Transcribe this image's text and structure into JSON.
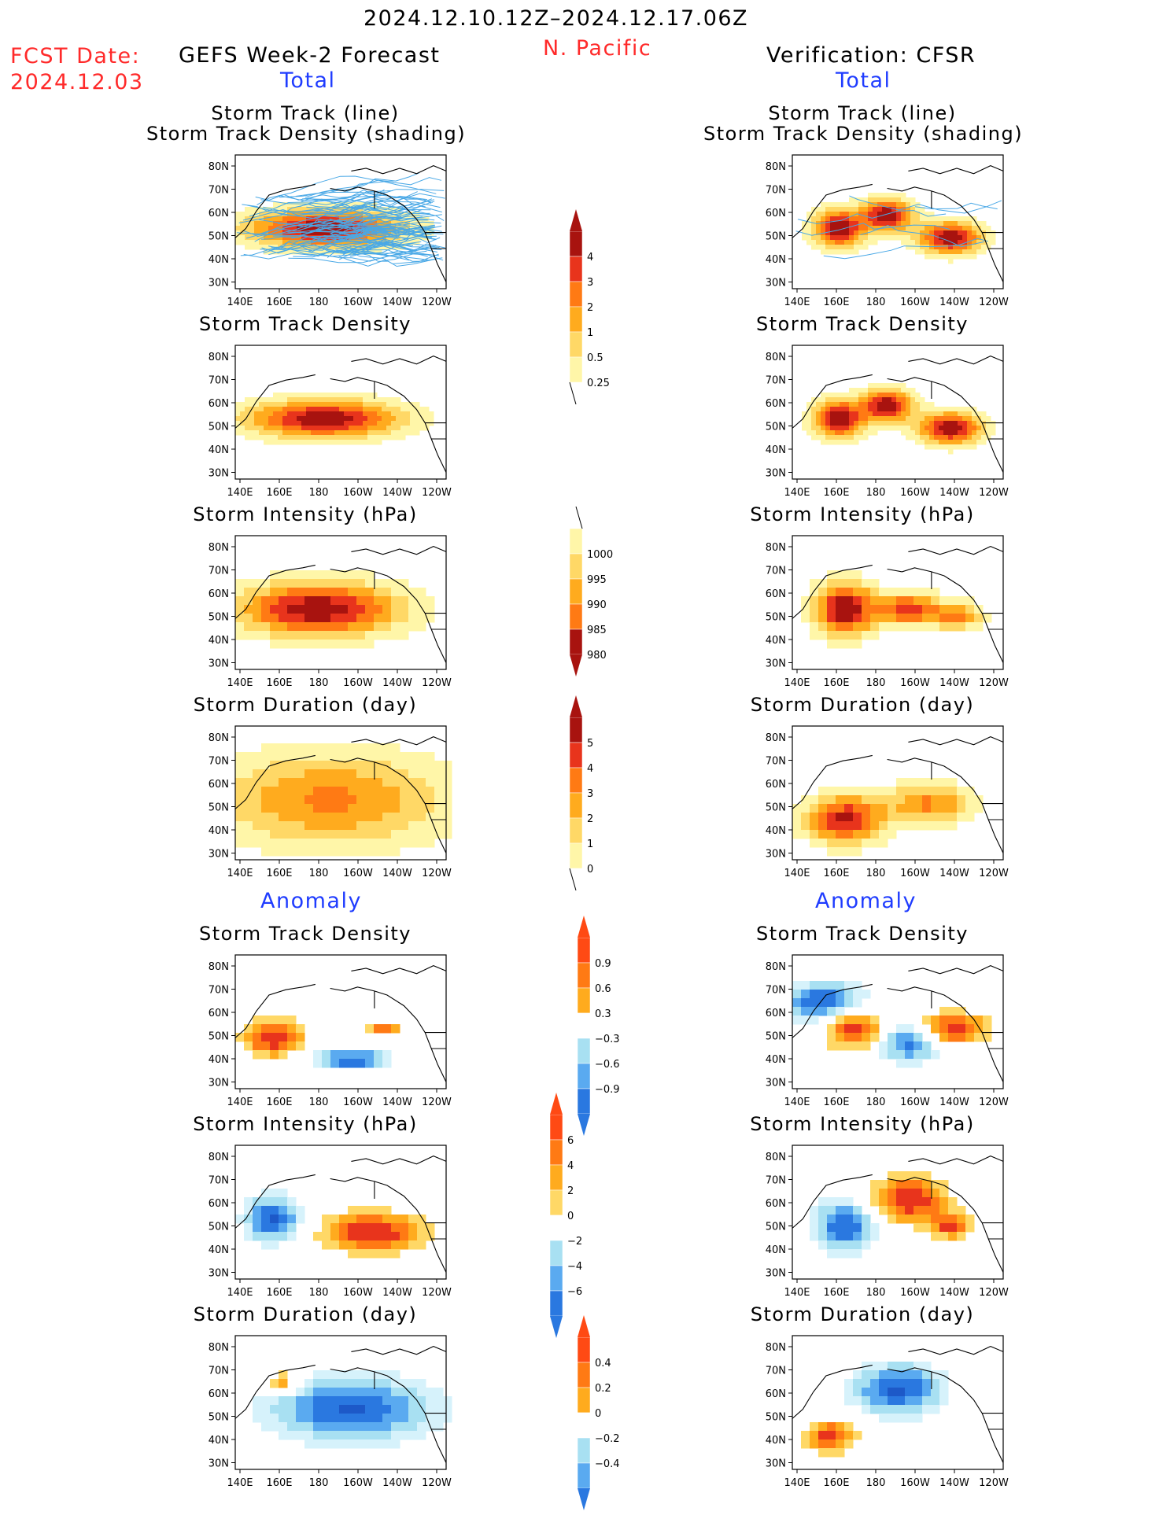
{
  "header": {
    "date_range": "2024.12.10.12Z–2024.12.17.06Z",
    "region": "N. Pacific",
    "fcst_label": "FCST Date:",
    "fcst_date": "2024.12.03",
    "left_title": "GEFS Week-2 Forecast",
    "right_title": "Verification: CFSR",
    "left_sub": "Total",
    "right_sub": "Total",
    "anomaly_left": "Anomaly",
    "anomaly_right": "Anomaly"
  },
  "axes": {
    "lat_labels": [
      "80N",
      "70N",
      "60N",
      "50N",
      "40N",
      "30N"
    ],
    "lon_labels": [
      "140E",
      "160E",
      "180",
      "160W",
      "140W",
      "120W"
    ]
  },
  "panels": {
    "track_line": [
      "Storm Track (line)",
      "Storm Track Density (shading)"
    ],
    "track_density": "Storm Track Density",
    "intensity": "Storm Intensity (hPa)",
    "duration": "Storm Duration (day)"
  },
  "colorbars": {
    "density": [
      "4",
      "3",
      "2",
      "1",
      "0.5",
      "0.25"
    ],
    "intensity": [
      "1000",
      "995",
      "990",
      "985",
      "980"
    ],
    "duration": [
      "5",
      "4",
      "3",
      "2",
      "1",
      "0"
    ],
    "anom_density": [
      "0.9",
      "0.6",
      "0.3",
      "−0.3",
      "−0.6",
      "−0.9"
    ],
    "anom_intensity": [
      "6",
      "4",
      "2",
      "0",
      "−2",
      "−4",
      "−6"
    ],
    "anom_duration": [
      "0.4",
      "0.2",
      "0",
      "−0.2",
      "−0.4"
    ]
  },
  "colors": {
    "pos": [
      "#fff6a8",
      "#ffd866",
      "#ffab1e",
      "#ff7a14",
      "#e8341c",
      "#a8130f"
    ],
    "neg": [
      "#d6f2fb",
      "#a8e0f2",
      "#5aaaf0",
      "#2a78e0",
      "#1d59c8"
    ],
    "track_line": "#49a8e6"
  }
}
